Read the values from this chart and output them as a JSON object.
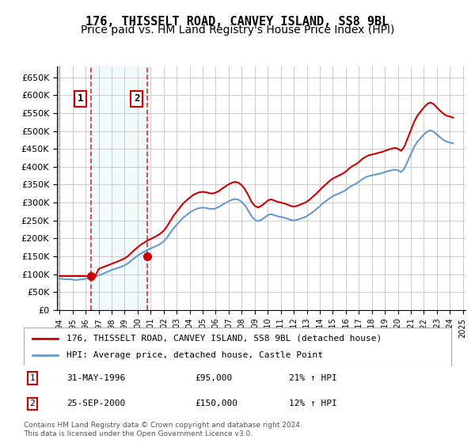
{
  "title": "176, THISSELT ROAD, CANVEY ISLAND, SS8 9BL",
  "subtitle": "Price paid vs. HM Land Registry's House Price Index (HPI)",
  "ylabel": "",
  "ylim": [
    0,
    680000
  ],
  "yticks": [
    0,
    50000,
    100000,
    150000,
    200000,
    250000,
    300000,
    350000,
    400000,
    450000,
    500000,
    550000,
    600000,
    650000
  ],
  "ytick_labels": [
    "£0",
    "£50K",
    "£100K",
    "£150K",
    "£200K",
    "£250K",
    "£300K",
    "£350K",
    "£400K",
    "£450K",
    "£500K",
    "£550K",
    "£600K",
    "£650K"
  ],
  "title_fontsize": 11,
  "subtitle_fontsize": 10,
  "bg_color": "#ffffff",
  "plot_bg_color": "#ffffff",
  "hatch_color": "#cccccc",
  "grid_color": "#cccccc",
  "sale1_date": 1996.42,
  "sale1_price": 95000,
  "sale2_date": 2000.73,
  "sale2_price": 150000,
  "legend_line1": "176, THISSELT ROAD, CANVEY ISLAND, SS8 9BL (detached house)",
  "legend_line2": "HPI: Average price, detached house, Castle Point",
  "annotation1_label": "1",
  "annotation1_date": "31-MAY-1996",
  "annotation1_price": "£95,000",
  "annotation1_hpi": "21% ↑ HPI",
  "annotation2_label": "2",
  "annotation2_date": "25-SEP-2000",
  "annotation2_price": "£150,000",
  "annotation2_hpi": "12% ↑ HPI",
  "footer": "Contains HM Land Registry data © Crown copyright and database right 2024.\nThis data is licensed under the Open Government Licence v3.0.",
  "hpi_data": {
    "years": [
      1994.0,
      1994.25,
      1994.5,
      1994.75,
      1995.0,
      1995.25,
      1995.5,
      1995.75,
      1996.0,
      1996.25,
      1996.5,
      1996.75,
      1997.0,
      1997.25,
      1997.5,
      1997.75,
      1998.0,
      1998.25,
      1998.5,
      1998.75,
      1999.0,
      1999.25,
      1999.5,
      1999.75,
      2000.0,
      2000.25,
      2000.5,
      2000.75,
      2001.0,
      2001.25,
      2001.5,
      2001.75,
      2002.0,
      2002.25,
      2002.5,
      2002.75,
      2003.0,
      2003.25,
      2003.5,
      2003.75,
      2004.0,
      2004.25,
      2004.5,
      2004.75,
      2005.0,
      2005.25,
      2005.5,
      2005.75,
      2006.0,
      2006.25,
      2006.5,
      2006.75,
      2007.0,
      2007.25,
      2007.5,
      2007.75,
      2008.0,
      2008.25,
      2008.5,
      2008.75,
      2009.0,
      2009.25,
      2009.5,
      2009.75,
      2010.0,
      2010.25,
      2010.5,
      2010.75,
      2011.0,
      2011.25,
      2011.5,
      2011.75,
      2012.0,
      2012.25,
      2012.5,
      2012.75,
      2013.0,
      2013.25,
      2013.5,
      2013.75,
      2014.0,
      2014.25,
      2014.5,
      2014.75,
      2015.0,
      2015.25,
      2015.5,
      2015.75,
      2016.0,
      2016.25,
      2016.5,
      2016.75,
      2017.0,
      2017.25,
      2017.5,
      2017.75,
      2018.0,
      2018.25,
      2018.5,
      2018.75,
      2019.0,
      2019.25,
      2019.5,
      2019.75,
      2020.0,
      2020.25,
      2020.5,
      2020.75,
      2021.0,
      2021.25,
      2021.5,
      2021.75,
      2022.0,
      2022.25,
      2022.5,
      2022.75,
      2023.0,
      2023.25,
      2023.5,
      2023.75,
      2024.0,
      2024.25
    ],
    "values": [
      88000,
      87000,
      86000,
      86500,
      85000,
      84000,
      85000,
      86000,
      87000,
      89000,
      91000,
      93000,
      97000,
      100000,
      104000,
      108000,
      112000,
      115000,
      118000,
      121000,
      125000,
      130000,
      138000,
      145000,
      152000,
      158000,
      163000,
      168000,
      172000,
      176000,
      180000,
      185000,
      192000,
      202000,
      215000,
      228000,
      238000,
      248000,
      258000,
      265000,
      272000,
      278000,
      282000,
      285000,
      286000,
      285000,
      283000,
      282000,
      284000,
      288000,
      294000,
      299000,
      304000,
      308000,
      310000,
      308000,
      302000,
      292000,
      278000,
      262000,
      252000,
      248000,
      252000,
      258000,
      265000,
      268000,
      265000,
      262000,
      260000,
      258000,
      255000,
      252000,
      250000,
      252000,
      255000,
      258000,
      262000,
      268000,
      275000,
      282000,
      290000,
      298000,
      305000,
      312000,
      318000,
      322000,
      326000,
      330000,
      335000,
      342000,
      348000,
      352000,
      358000,
      365000,
      370000,
      374000,
      376000,
      378000,
      380000,
      382000,
      385000,
      388000,
      390000,
      392000,
      390000,
      385000,
      395000,
      415000,
      435000,
      455000,
      470000,
      480000,
      490000,
      498000,
      502000,
      498000,
      490000,
      482000,
      475000,
      470000,
      468000,
      465000
    ]
  },
  "price_data": {
    "years": [
      1994.0,
      1994.25,
      1994.5,
      1994.75,
      1995.0,
      1995.25,
      1995.5,
      1995.75,
      1996.0,
      1996.25,
      1996.5,
      1996.75,
      1997.0,
      1997.25,
      1997.5,
      1997.75,
      1998.0,
      1998.25,
      1998.5,
      1998.75,
      1999.0,
      1999.25,
      1999.5,
      1999.75,
      2000.0,
      2000.25,
      2000.5,
      2000.75,
      2001.0,
      2001.25,
      2001.5,
      2001.75,
      2002.0,
      2002.25,
      2002.5,
      2002.75,
      2003.0,
      2003.25,
      2003.5,
      2003.75,
      2004.0,
      2004.25,
      2004.5,
      2004.75,
      2005.0,
      2005.25,
      2005.5,
      2005.75,
      2006.0,
      2006.25,
      2006.5,
      2006.75,
      2007.0,
      2007.25,
      2007.5,
      2007.75,
      2008.0,
      2008.25,
      2008.5,
      2008.75,
      2009.0,
      2009.25,
      2009.5,
      2009.75,
      2010.0,
      2010.25,
      2010.5,
      2010.75,
      2011.0,
      2011.25,
      2011.5,
      2011.75,
      2012.0,
      2012.25,
      2012.5,
      2012.75,
      2013.0,
      2013.25,
      2013.5,
      2013.75,
      2014.0,
      2014.25,
      2014.5,
      2014.75,
      2015.0,
      2015.25,
      2015.5,
      2015.75,
      2016.0,
      2016.25,
      2016.5,
      2016.75,
      2017.0,
      2017.25,
      2017.5,
      2017.75,
      2018.0,
      2018.25,
      2018.5,
      2018.75,
      2019.0,
      2019.25,
      2019.5,
      2019.75,
      2020.0,
      2020.25,
      2020.5,
      2020.75,
      2021.0,
      2021.25,
      2021.5,
      2021.75,
      2022.0,
      2022.25,
      2022.5,
      2022.75,
      2023.0,
      2023.25,
      2023.5,
      2023.75,
      2024.0,
      2024.25
    ],
    "values": [
      95000,
      95000,
      95000,
      95000,
      95000,
      95000,
      95000,
      95000,
      95000,
      95000,
      95000,
      95000,
      114900,
      118400,
      122000,
      125600,
      129200,
      132800,
      136400,
      140000,
      144700,
      150600,
      159000,
      167500,
      175500,
      182500,
      188200,
      193900,
      198500,
      203100,
      207800,
      213500,
      221600,
      233200,
      248100,
      263000,
      274600,
      286200,
      297800,
      306000,
      313800,
      320800,
      325600,
      329000,
      329900,
      329000,
      326300,
      325600,
      327900,
      332400,
      339300,
      345100,
      351000,
      355500,
      357800,
      355500,
      348500,
      337000,
      321000,
      302500,
      291000,
      286300,
      290900,
      297800,
      305700,
      309200,
      305700,
      302200,
      300100,
      298000,
      294400,
      290900,
      288800,
      290900,
      294400,
      298000,
      302500,
      309200,
      317800,
      325600,
      334900,
      344200,
      351900,
      360200,
      367100,
      371600,
      376200,
      380700,
      386700,
      394900,
      401800,
      406300,
      413200,
      421500,
      427300,
      432000,
      434100,
      436200,
      439000,
      441000,
      444400,
      447800,
      450400,
      452600,
      450400,
      444400,
      456000,
      479100,
      501800,
      525400,
      542400,
      554000,
      565600,
      575000,
      579600,
      575000,
      565600,
      556200,
      548300,
      542400,
      540300,
      537000
    ]
  },
  "xticks": [
    1994,
    1995,
    1996,
    1997,
    1998,
    1999,
    2000,
    2001,
    2002,
    2003,
    2004,
    2005,
    2006,
    2007,
    2008,
    2009,
    2010,
    2011,
    2012,
    2013,
    2014,
    2015,
    2016,
    2017,
    2018,
    2019,
    2020,
    2021,
    2022,
    2023,
    2024,
    2025
  ],
  "xlim": [
    1993.8,
    2025.2
  ]
}
